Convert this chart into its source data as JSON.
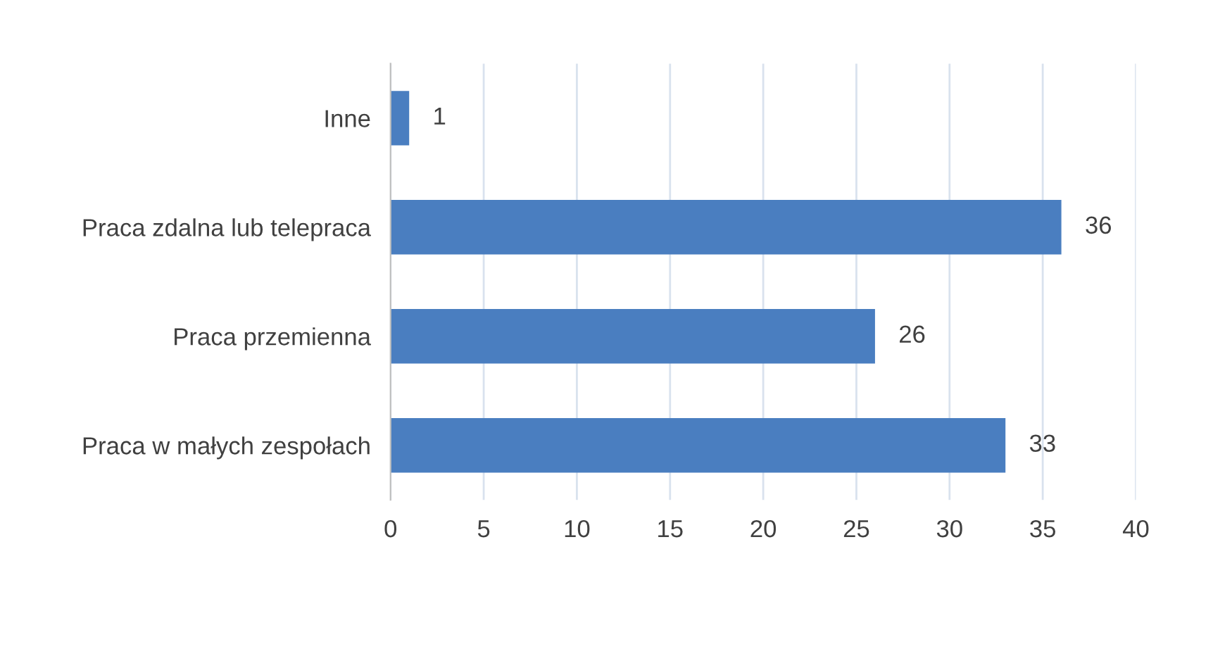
{
  "chart_data": {
    "type": "bar",
    "orientation": "horizontal",
    "categories": [
      "Inne",
      "Praca zdalna lub telepraca",
      "Praca przemienna",
      "Praca w małych zespołach"
    ],
    "values": [
      1,
      36,
      26,
      33
    ],
    "color": "#4a7ec0",
    "xlim": [
      0,
      40
    ],
    "xticks": [
      0,
      5,
      10,
      15,
      20,
      25,
      30,
      35,
      40
    ],
    "grid": "x",
    "data_labels": true
  }
}
